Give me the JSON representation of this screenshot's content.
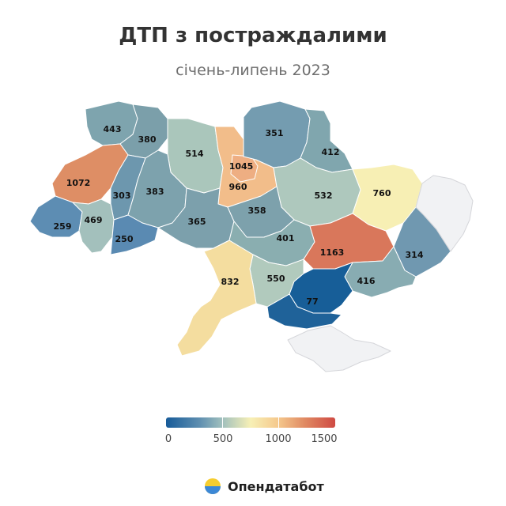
{
  "title": "ДТП з постраждалими",
  "subtitle": "січень-липень 2023",
  "legend": {
    "min": 0,
    "max": 1500,
    "ticks": [
      "0",
      "500",
      "1000",
      "1500"
    ]
  },
  "regions": [
    {
      "name": "Волинська",
      "value": "443"
    },
    {
      "name": "Рівненська",
      "value": "380"
    },
    {
      "name": "Житомирська",
      "value": "514"
    },
    {
      "name": "Київська",
      "value": "960"
    },
    {
      "name": "Київ",
      "value": "1045"
    },
    {
      "name": "Чернігівська",
      "value": "351"
    },
    {
      "name": "Сумська",
      "value": "412"
    },
    {
      "name": "Полтавська",
      "value": "532"
    },
    {
      "name": "Харківська",
      "value": "760"
    },
    {
      "name": "Львівська",
      "value": "1072"
    },
    {
      "name": "Тернопільська",
      "value": "303"
    },
    {
      "name": "Хмельницька",
      "value": "383"
    },
    {
      "name": "Закарпатська",
      "value": "259"
    },
    {
      "name": "Івано-Франківська",
      "value": "469"
    },
    {
      "name": "Чернівецька",
      "value": "250"
    },
    {
      "name": "Вінницька",
      "value": "365"
    },
    {
      "name": "Черкаська",
      "value": "358"
    },
    {
      "name": "Кіровоградська",
      "value": "401"
    },
    {
      "name": "Дніпропетровська",
      "value": "1163"
    },
    {
      "name": "Луганська",
      "value": "314"
    },
    {
      "name": "Донецька",
      "value": "416"
    },
    {
      "name": "Запорізька",
      "value": "77"
    },
    {
      "name": "Миколаївська",
      "value": "550"
    },
    {
      "name": "Одеська",
      "value": "832"
    },
    {
      "name": "Херсонська",
      "value": ""
    },
    {
      "name": "АР Крим",
      "value": ""
    }
  ],
  "brand": {
    "name": "Опендатабот",
    "logo_icon": "opendatabot-logo-icon"
  },
  "colors": {
    "low": "#175b99",
    "mid": "#f7f0b6",
    "high": "#cf4a43",
    "no_data": "#f1f2f4"
  }
}
